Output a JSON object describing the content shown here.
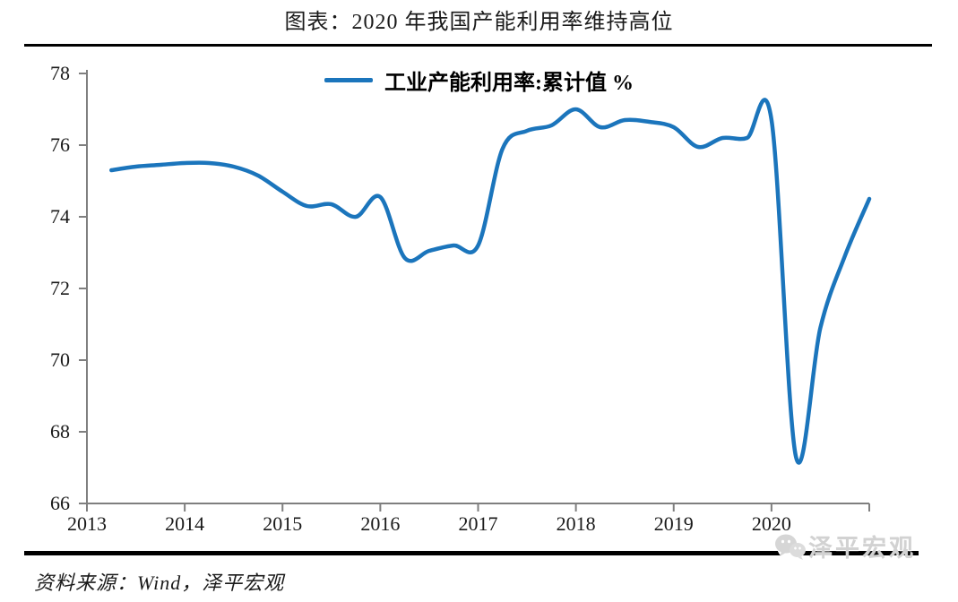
{
  "header": {
    "title": "图表：2020 年我国产能利用率维持高位"
  },
  "legend": {
    "label": "工业产能利用率:累计值 %"
  },
  "source": {
    "text": "资料来源：Wind，泽平宏观"
  },
  "watermark": {
    "icon": "wechat-icon",
    "text": "泽平宏观"
  },
  "colors": {
    "line": "#1B75BC",
    "axis": "#7F7F7F",
    "text": "#1A1A1A",
    "watermark": "#D2D2D2",
    "divider": "#000000"
  },
  "chart_data": {
    "type": "line",
    "title": "图表：2020 年我国产能利用率维持高位",
    "series_name": "工业产能利用率:累计值 %",
    "x": [
      2013.25,
      2013.5,
      2013.75,
      2014.0,
      2014.25,
      2014.5,
      2014.75,
      2015.0,
      2015.25,
      2015.5,
      2015.75,
      2016.0,
      2016.25,
      2016.5,
      2016.75,
      2017.0,
      2017.25,
      2017.5,
      2017.75,
      2018.0,
      2018.25,
      2018.5,
      2018.75,
      2019.0,
      2019.25,
      2019.5,
      2019.75,
      2020.0,
      2020.25,
      2020.5,
      2020.75,
      2021.0
    ],
    "values": [
      75.3,
      75.4,
      75.45,
      75.5,
      75.5,
      75.4,
      75.15,
      74.7,
      74.3,
      74.35,
      74.0,
      74.55,
      72.85,
      73.05,
      73.2,
      73.2,
      75.9,
      76.4,
      76.55,
      77.0,
      76.5,
      76.7,
      76.65,
      76.5,
      75.95,
      76.2,
      76.2,
      76.7,
      67.3,
      70.9,
      72.9,
      74.5
    ],
    "x_ticks": [
      2013,
      2014,
      2015,
      2016,
      2017,
      2018,
      2019,
      2020
    ],
    "x_tick_labels": [
      "2013",
      "2014",
      "2015",
      "2016",
      "2017",
      "2018",
      "2019",
      "2020"
    ],
    "x_axis_end": 2021,
    "y_ticks": [
      66,
      68,
      70,
      72,
      74,
      76,
      78
    ],
    "ylim": [
      66,
      78
    ],
    "xlim": [
      2013,
      2021
    ],
    "grid": false,
    "legend_position": "top-center",
    "smooth": true
  }
}
